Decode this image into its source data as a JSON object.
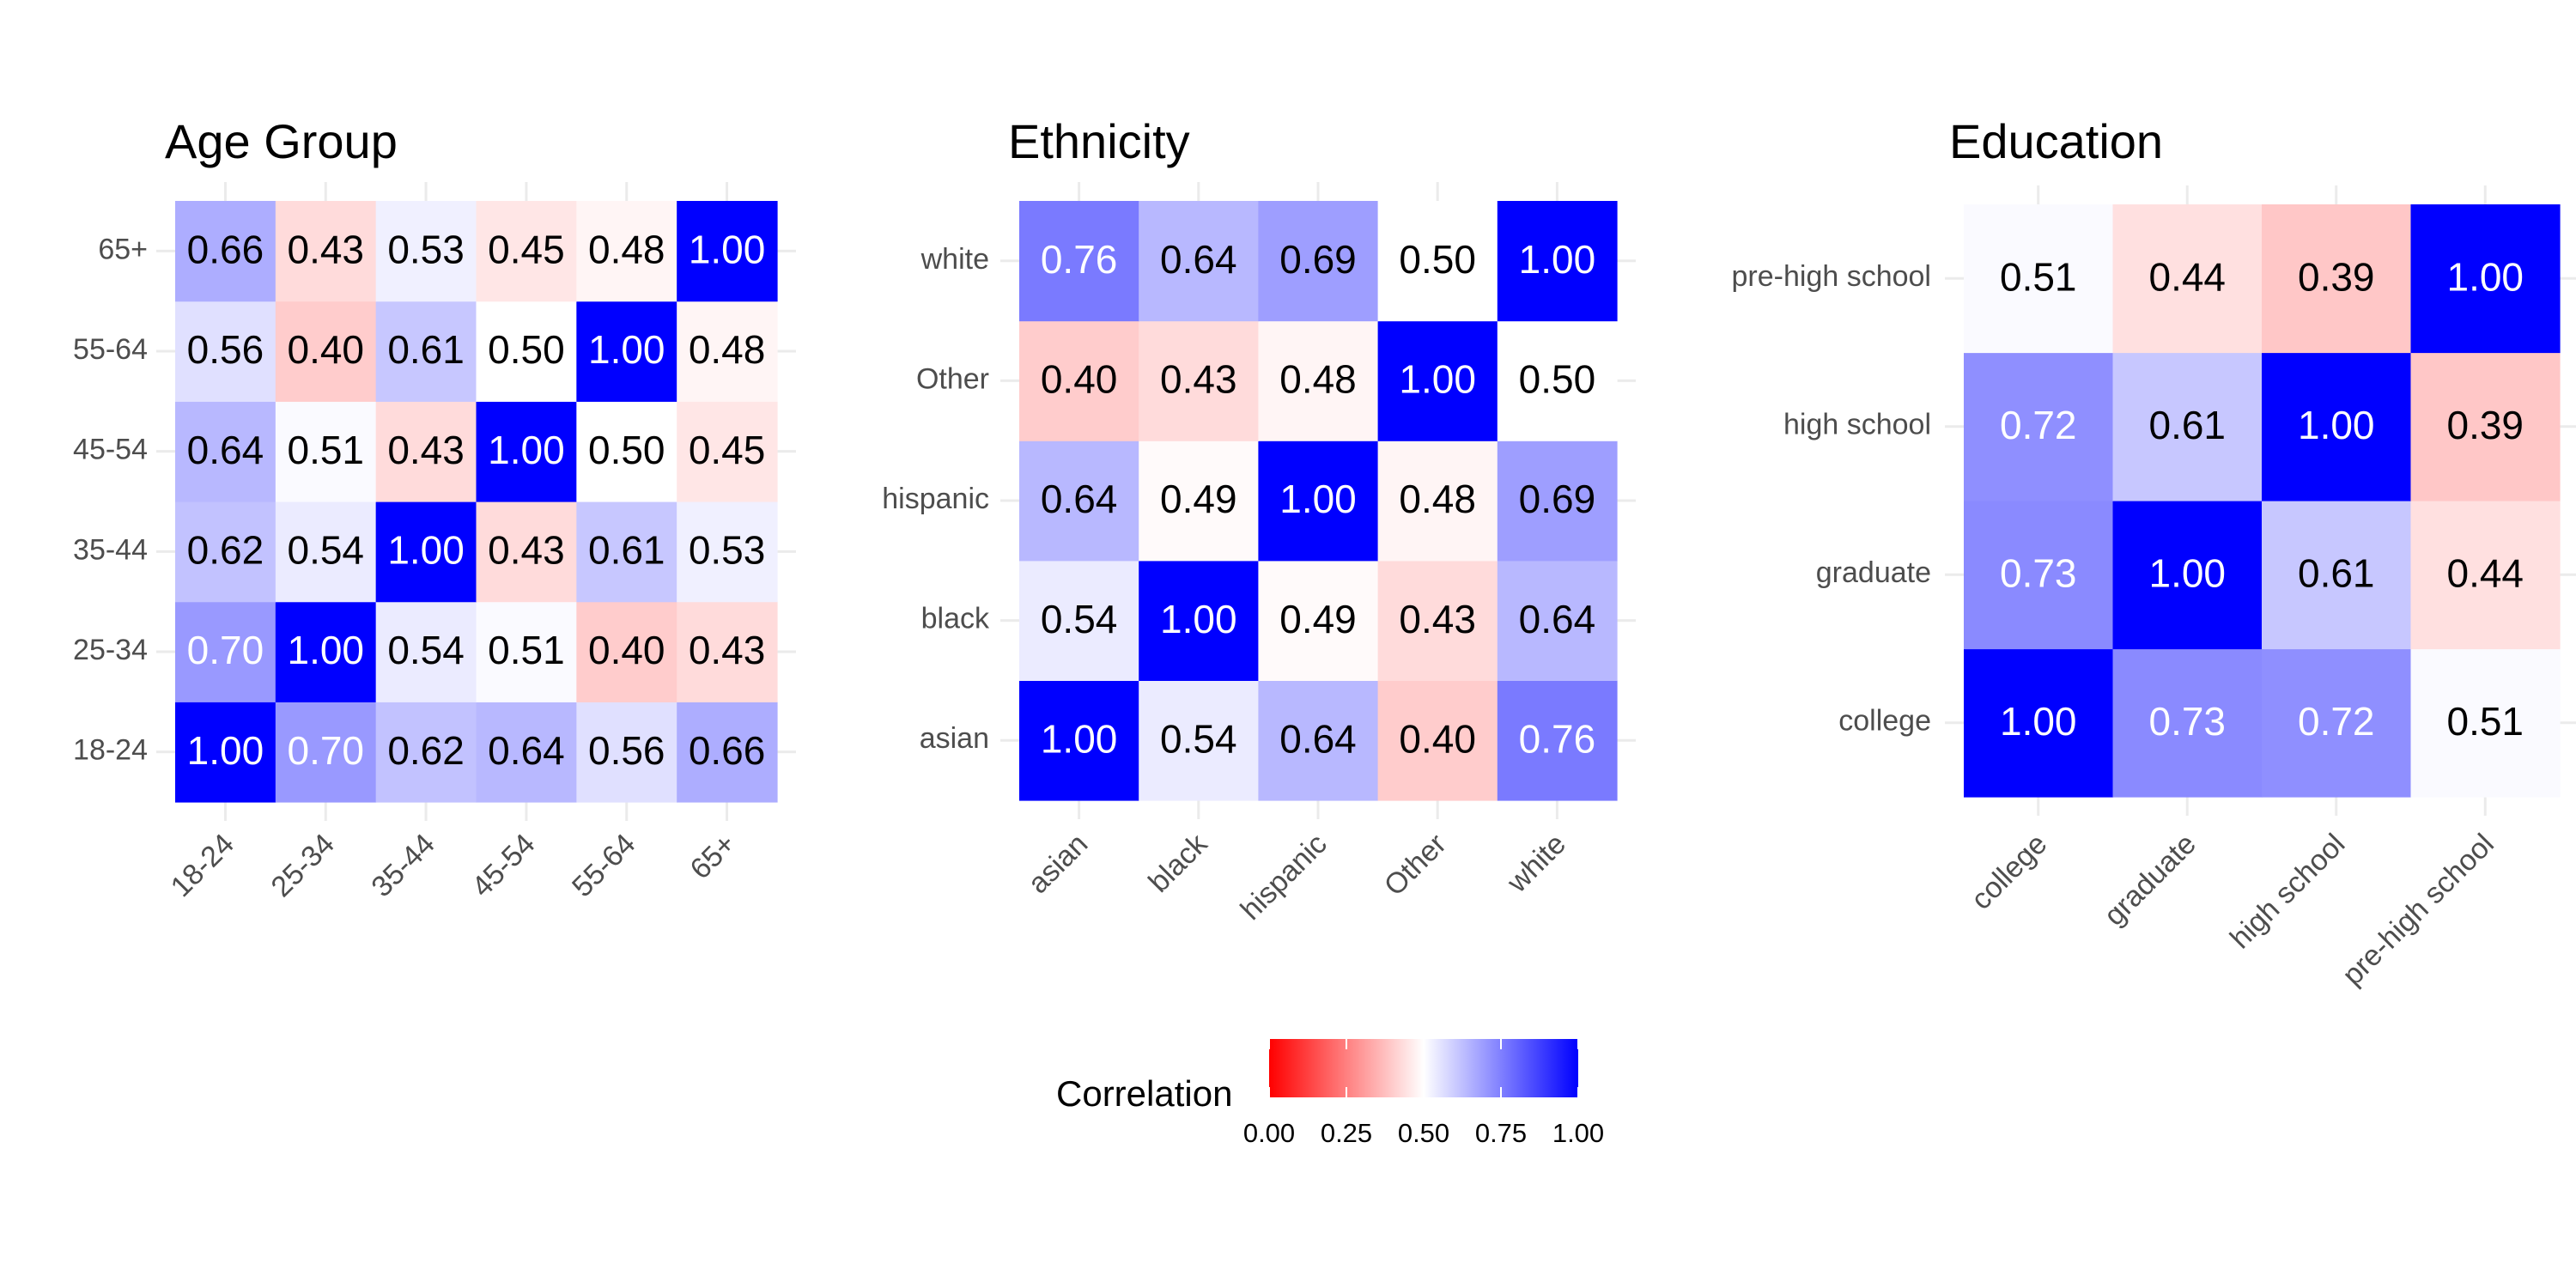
{
  "legend": {
    "title": "Correlation",
    "ticks": [
      "0.00",
      "0.25",
      "0.50",
      "0.75",
      "1.00"
    ],
    "colors": {
      "low": "#ff0000",
      "mid": "#ffffff",
      "high": "#0000ff"
    }
  },
  "chart_data": [
    {
      "type": "heatmap",
      "title": "Age Group",
      "categories": [
        "18-24",
        "25-34",
        "35-44",
        "45-54",
        "55-64",
        "65+"
      ],
      "matrix": [
        [
          1.0,
          0.7,
          0.62,
          0.64,
          0.56,
          0.66
        ],
        [
          0.7,
          1.0,
          0.54,
          0.51,
          0.4,
          0.43
        ],
        [
          0.62,
          0.54,
          1.0,
          0.43,
          0.61,
          0.53
        ],
        [
          0.64,
          0.51,
          0.43,
          1.0,
          0.5,
          0.45
        ],
        [
          0.56,
          0.4,
          0.61,
          0.5,
          1.0,
          0.48
        ],
        [
          0.66,
          0.43,
          0.53,
          0.45,
          0.48,
          1.0
        ]
      ],
      "scale_limits": [
        0,
        1
      ]
    },
    {
      "type": "heatmap",
      "title": "Ethnicity",
      "categories": [
        "asian",
        "black",
        "hispanic",
        "Other",
        "white"
      ],
      "matrix": [
        [
          1.0,
          0.54,
          0.64,
          0.4,
          0.76
        ],
        [
          0.54,
          1.0,
          0.49,
          0.43,
          0.64
        ],
        [
          0.64,
          0.49,
          1.0,
          0.48,
          0.69
        ],
        [
          0.4,
          0.43,
          0.48,
          1.0,
          0.5
        ],
        [
          0.76,
          0.64,
          0.69,
          0.5,
          1.0
        ]
      ],
      "scale_limits": [
        0,
        1
      ]
    },
    {
      "type": "heatmap",
      "title": "Education",
      "categories": [
        "college",
        "graduate",
        "high school",
        "pre-high school"
      ],
      "matrix": [
        [
          1.0,
          0.73,
          0.72,
          0.51
        ],
        [
          0.73,
          1.0,
          0.61,
          0.44
        ],
        [
          0.72,
          0.61,
          1.0,
          0.39
        ],
        [
          0.51,
          0.44,
          0.39,
          1.0
        ]
      ],
      "scale_limits": [
        0,
        1
      ]
    }
  ]
}
